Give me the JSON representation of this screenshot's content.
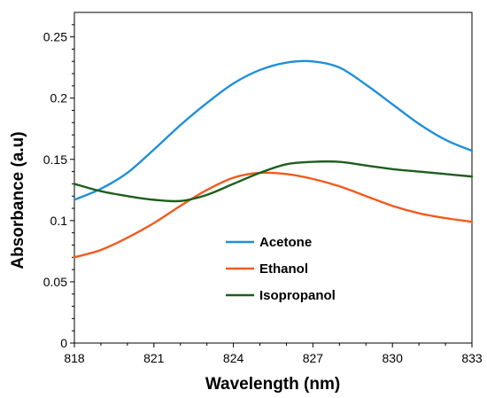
{
  "chart_data": {
    "type": "line",
    "title": "",
    "xlabel": "Wavelength (nm)",
    "ylabel": "Absorbance (a.u)",
    "xlim": [
      818,
      833
    ],
    "ylim": [
      0,
      0.27
    ],
    "xticks": [
      818,
      821,
      824,
      827,
      830,
      833
    ],
    "yticks": [
      0,
      0.05,
      0.1,
      0.15,
      0.2,
      0.25
    ],
    "xtick_labels": [
      "818",
      "821",
      "824",
      "827",
      "830",
      "833"
    ],
    "ytick_labels": [
      "0",
      "0.05",
      "0.1",
      "0.15",
      "0.2",
      "0.25"
    ],
    "grid": false,
    "legend_position": "center-bottom",
    "series": [
      {
        "name": "Acetone",
        "color": "#1f8fd8",
        "x": [
          818,
          819,
          820,
          821,
          822,
          823,
          824,
          825,
          826,
          827,
          828,
          829,
          830,
          831,
          832,
          833
        ],
        "y": [
          0.117,
          0.126,
          0.139,
          0.158,
          0.178,
          0.196,
          0.212,
          0.223,
          0.229,
          0.23,
          0.225,
          0.211,
          0.195,
          0.179,
          0.166,
          0.157
        ]
      },
      {
        "name": "Ethanol",
        "color": "#f25a1c",
        "x": [
          818,
          819,
          820,
          821,
          822,
          823,
          824,
          825,
          826,
          827,
          828,
          829,
          830,
          831,
          832,
          833
        ],
        "y": [
          0.07,
          0.076,
          0.086,
          0.098,
          0.112,
          0.125,
          0.135,
          0.139,
          0.138,
          0.134,
          0.128,
          0.12,
          0.112,
          0.106,
          0.102,
          0.099
        ]
      },
      {
        "name": "Isopropanol",
        "color": "#1d5e1d",
        "x": [
          818,
          819,
          820,
          821,
          822,
          823,
          824,
          825,
          826,
          827,
          828,
          829,
          830,
          831,
          832,
          833
        ],
        "y": [
          0.13,
          0.124,
          0.12,
          0.117,
          0.116,
          0.121,
          0.13,
          0.139,
          0.146,
          0.148,
          0.148,
          0.145,
          0.142,
          0.14,
          0.138,
          0.136
        ]
      }
    ]
  }
}
